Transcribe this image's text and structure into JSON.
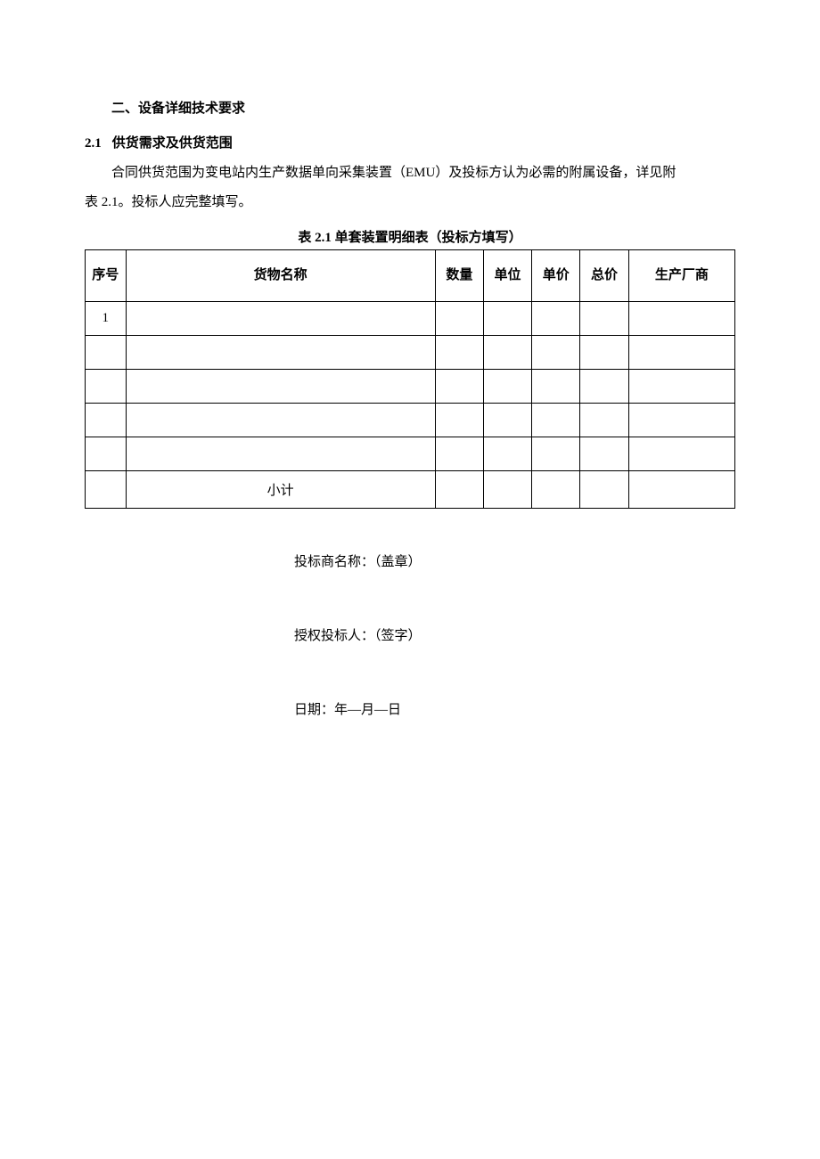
{
  "headings": {
    "section": "二、设备详细技术要求",
    "subsection_num": "2.1",
    "subsection_title": "供货需求及供货范围"
  },
  "paragraphs": {
    "p1_a": "合同供货范围为变电站内生产数据单向采集装置（",
    "p1_emu": "EMU",
    "p1_b": "）及投标方认为必需的附属设备，详见附",
    "p2_a": "表 ",
    "p2_num": "2.1",
    "p2_b": "。投标人应完整填写。"
  },
  "table": {
    "caption_a": "表 ",
    "caption_num": "2.1 ",
    "caption_b": "单套装置明细表（投标方填写）",
    "headers": {
      "seq": "序号",
      "name": "货物名称",
      "qty": "数量",
      "unit": "单位",
      "unit_price": "单价",
      "total_price": "总价",
      "manufacturer": "生产厂商"
    },
    "rows": [
      {
        "seq": "1",
        "name": "",
        "qty": "",
        "unit": "",
        "unit_price": "",
        "total_price": "",
        "manufacturer": ""
      },
      {
        "seq": "",
        "name": "",
        "qty": "",
        "unit": "",
        "unit_price": "",
        "total_price": "",
        "manufacturer": ""
      },
      {
        "seq": "",
        "name": "",
        "qty": "",
        "unit": "",
        "unit_price": "",
        "total_price": "",
        "manufacturer": ""
      },
      {
        "seq": "",
        "name": "",
        "qty": "",
        "unit": "",
        "unit_price": "",
        "total_price": "",
        "manufacturer": ""
      },
      {
        "seq": "",
        "name": "",
        "qty": "",
        "unit": "",
        "unit_price": "",
        "total_price": "",
        "manufacturer": ""
      }
    ],
    "subtotal_label": "小计"
  },
  "signatures": {
    "bidder_name": "投标商名称：（盖章）",
    "authorized_bidder": "授权投标人：（签字）",
    "date": "日期：年—月—日"
  }
}
